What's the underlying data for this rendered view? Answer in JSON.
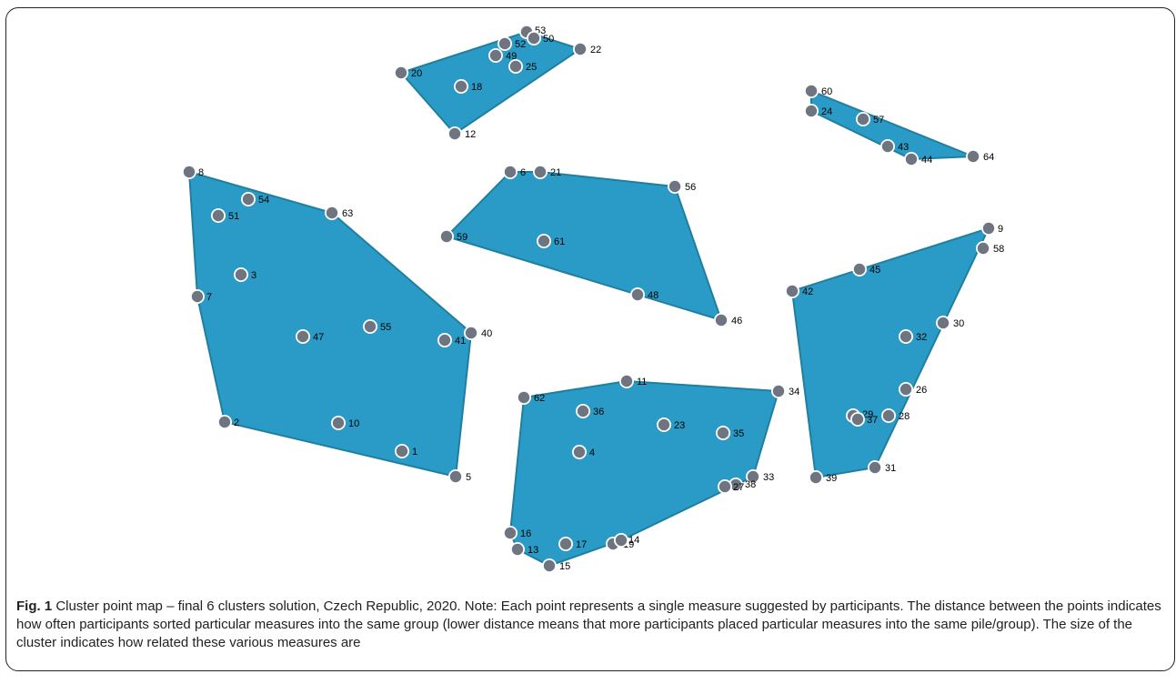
{
  "figure": {
    "fig_label": "Fig. 1",
    "caption": "Cluster point map – final 6 clusters solution, Czech Republic, 2020. Note: Each point represents a single measure suggested by participants. The distance between the points indicates how often participants sorted particular measures into the same group (lower distance means that more participants placed particular measures into the same pile/group). The size of the cluster indicates how related these various measures are"
  },
  "colors": {
    "cluster_fill": "#2a9bc6",
    "cluster_stroke": "#1f7f9f",
    "point": "#6e7580"
  },
  "clusters": [
    {
      "hull": [
        "20",
        "53",
        "22",
        "12"
      ],
      "points": [
        "20",
        "53",
        "50",
        "52",
        "49",
        "25",
        "22",
        "18",
        "12"
      ]
    },
    {
      "hull": [
        "60",
        "64",
        "44",
        "24"
      ],
      "points": [
        "60",
        "24",
        "57",
        "43",
        "44",
        "64"
      ]
    },
    {
      "hull": [
        "6",
        "21",
        "56",
        "46",
        "59"
      ],
      "points": [
        "6",
        "21",
        "56",
        "59",
        "61",
        "48",
        "46"
      ]
    },
    {
      "hull": [
        "8",
        "63",
        "40",
        "5",
        "2",
        "7"
      ],
      "points": [
        "8",
        "54",
        "51",
        "63",
        "3",
        "7",
        "47",
        "55",
        "41",
        "40",
        "2",
        "10",
        "1",
        "5"
      ]
    },
    {
      "hull": [
        "62",
        "11",
        "34",
        "33",
        "14",
        "15",
        "13",
        "16"
      ],
      "points": [
        "62",
        "11",
        "34",
        "36",
        "23",
        "35",
        "4",
        "33",
        "38",
        "27",
        "16",
        "13",
        "17",
        "19",
        "14",
        "15"
      ]
    },
    {
      "hull": [
        "9",
        "31",
        "39",
        "42"
      ],
      "points": [
        "9",
        "58",
        "45",
        "42",
        "30",
        "32",
        "26",
        "29",
        "37",
        "28",
        "31",
        "39"
      ]
    }
  ]
}
